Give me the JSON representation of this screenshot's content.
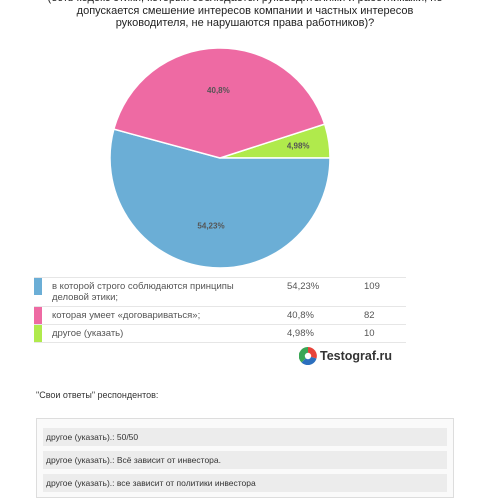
{
  "question": {
    "title": "(есть кодекс этики, который соблюдается руководителями и работниками, не допускается смешение интересов компании и частных интересов руководителя, не нарушаются права работников)?"
  },
  "chart_data": {
    "type": "pie",
    "slices": [
      {
        "label": "в которой строго соблюдаются принципы деловой этики;",
        "percent": 54.23,
        "percent_text": "54,23%",
        "count": 109,
        "color": "#6baed6"
      },
      {
        "label": "которая умеет «договариваться»;",
        "percent": 40.8,
        "percent_text": "40,8%",
        "count": 82,
        "color": "#ee6aa3"
      },
      {
        "label": "другое (указать)",
        "percent": 4.98,
        "percent_text": "4,98%",
        "count": 10,
        "color": "#b0ea4c"
      }
    ]
  },
  "brand": {
    "name": "Testograf.ru"
  },
  "answers": {
    "heading": "\"Свои ответы\" респондентов:",
    "items": [
      "другое (указать).: 50/50",
      "другое (указать).: Всё зависит от инвестора.",
      "другое (указать).: все зависит от политики инвестора"
    ]
  }
}
